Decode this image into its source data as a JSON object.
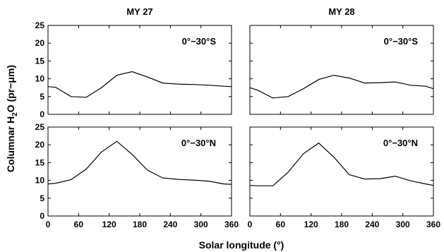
{
  "chart_data": {
    "type": "line",
    "xlabel": "Solar longitude (°)",
    "ylabel": "Columnar H₂O (pr−μm)",
    "xlim": [
      0,
      360
    ],
    "ylim": [
      0,
      25
    ],
    "xticks": [
      "0",
      "60",
      "120",
      "180",
      "240",
      "300",
      "360"
    ],
    "yticks": [
      "0",
      "5",
      "10",
      "15",
      "20",
      "25"
    ],
    "columns": [
      "MY 27",
      "MY 28"
    ],
    "panels": [
      {
        "column": "MY 27",
        "label": "0°−30°S",
        "series": [
          {
            "x": [
              0,
              15,
              45,
              75,
              105,
              135,
              165,
              195,
              225,
              255,
              285,
              315,
              345,
              360
            ],
            "y": [
              7.8,
              7.6,
              5.0,
              4.8,
              7.5,
              11.0,
              12.0,
              10.5,
              8.8,
              8.5,
              8.4,
              8.2,
              7.9,
              7.8
            ]
          }
        ]
      },
      {
        "column": "MY 28",
        "label": "0°−30°S",
        "series": [
          {
            "x": [
              0,
              15,
              45,
              75,
              105,
              135,
              165,
              195,
              225,
              255,
              285,
              315,
              345,
              360
            ],
            "y": [
              7.5,
              6.8,
              4.6,
              5.0,
              7.2,
              9.8,
              11.0,
              10.2,
              8.8,
              8.9,
              9.1,
              8.2,
              7.9,
              7.2
            ]
          }
        ]
      },
      {
        "column": "MY 27",
        "label": "0°−30°N",
        "series": [
          {
            "x": [
              0,
              15,
              45,
              75,
              105,
              135,
              165,
              195,
              225,
              255,
              285,
              315,
              345,
              360
            ],
            "y": [
              9.0,
              9.2,
              10.2,
              13.2,
              18.0,
              21.0,
              17.3,
              12.9,
              10.7,
              10.3,
              10.1,
              9.8,
              9.0,
              8.9
            ]
          }
        ]
      },
      {
        "column": "MY 28",
        "label": "0°−30°N",
        "series": [
          {
            "x": [
              0,
              15,
              45,
              75,
              105,
              135,
              165,
              195,
              225,
              255,
              285,
              315,
              345,
              360
            ],
            "y": [
              8.6,
              8.5,
              8.5,
              12.3,
              17.5,
              20.5,
              16.5,
              11.6,
              10.4,
              10.5,
              11.2,
              9.9,
              9.0,
              8.6
            ]
          }
        ]
      }
    ]
  }
}
